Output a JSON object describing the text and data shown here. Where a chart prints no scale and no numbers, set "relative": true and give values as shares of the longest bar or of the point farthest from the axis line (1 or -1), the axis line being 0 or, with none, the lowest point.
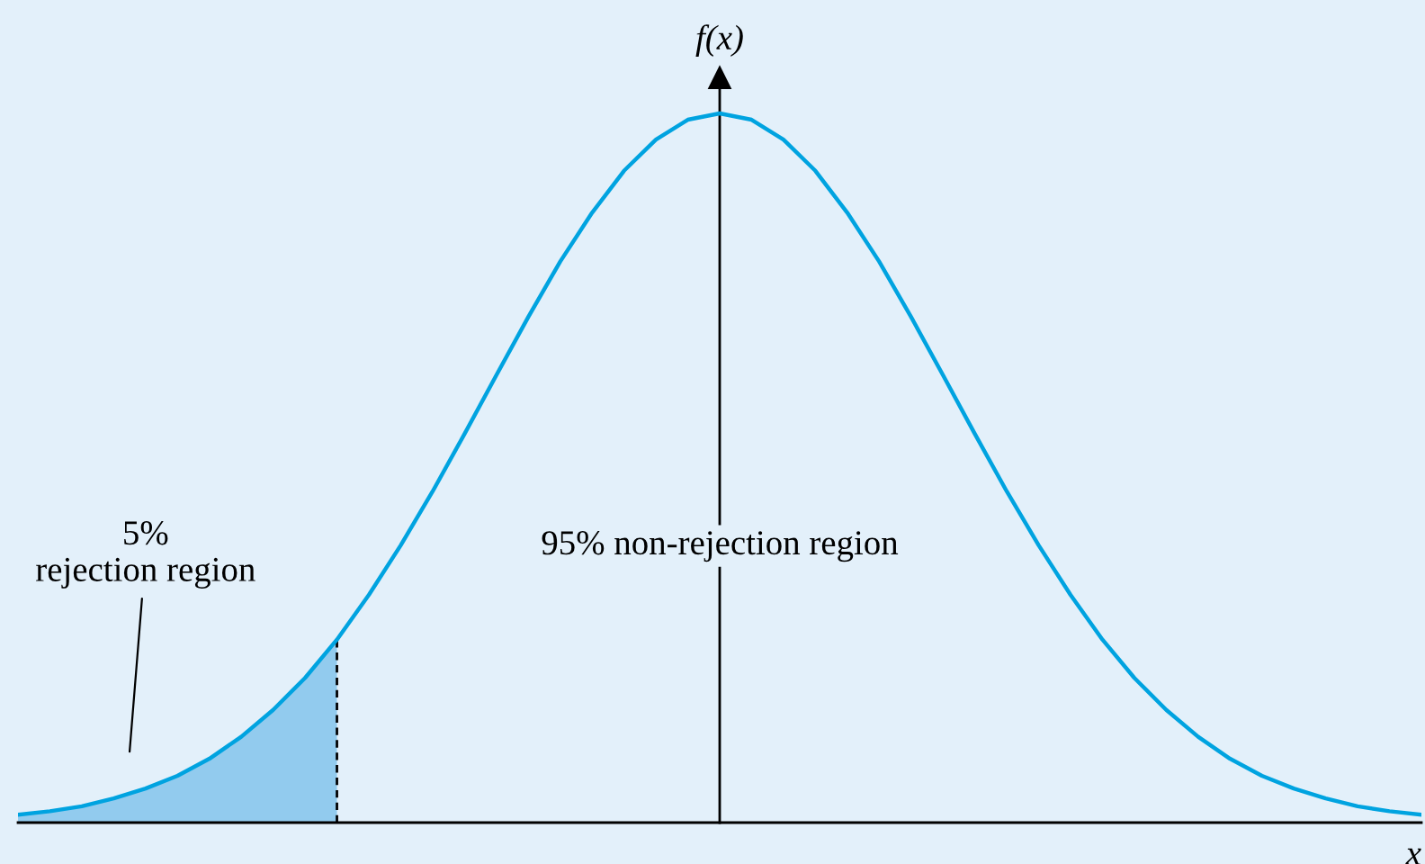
{
  "chart_data": {
    "type": "line",
    "relative": true,
    "xlabel": "x",
    "ylabel": "f(x)",
    "categories": [
      null,
      null,
      null,
      null,
      null,
      null,
      null,
      null,
      null,
      null,
      null,
      null,
      null,
      null,
      null,
      null,
      null,
      null,
      null,
      null,
      null,
      null,
      null,
      null,
      null,
      null,
      null,
      null,
      null,
      null,
      null,
      null,
      null,
      null,
      null,
      null,
      null,
      null,
      null,
      null,
      null,
      null,
      null,
      null,
      null
    ],
    "series": [
      {
        "color": "#00a3e0",
        "values": [
          0.011,
          0.016,
          0.023,
          0.034,
          0.048,
          0.066,
          0.09,
          0.121,
          0.159,
          0.204,
          0.258,
          0.321,
          0.391,
          0.467,
          0.548,
          0.631,
          0.713,
          0.791,
          0.86,
          0.919,
          0.963,
          0.991,
          1,
          0.991,
          0.963,
          0.919,
          0.86,
          0.791,
          0.713,
          0.631,
          0.548,
          0.467,
          0.391,
          0.321,
          0.258,
          0.204,
          0.159,
          0.121,
          0.09,
          0.066,
          0.048,
          0.034,
          0.023,
          0.016,
          0.011
        ]
      },
      {
        "type": "area",
        "color": "#92cbee",
        "values": [
          0.011,
          0.016,
          0.023,
          0.034,
          0.048,
          0.066,
          0.09,
          0.121,
          0.159,
          0.204,
          0.258,
          null,
          null,
          null,
          null,
          null,
          null,
          null,
          null,
          null,
          null,
          null,
          null,
          null,
          null,
          null,
          null,
          null,
          null,
          null,
          null,
          null,
          null,
          null,
          null,
          null,
          null,
          null,
          null,
          null,
          null,
          null,
          null,
          null,
          null
        ]
      }
    ],
    "annotations": [
      "5%\nrejection region",
      "95% non-rejection region"
    ],
    "grid": false,
    "legend": false
  }
}
